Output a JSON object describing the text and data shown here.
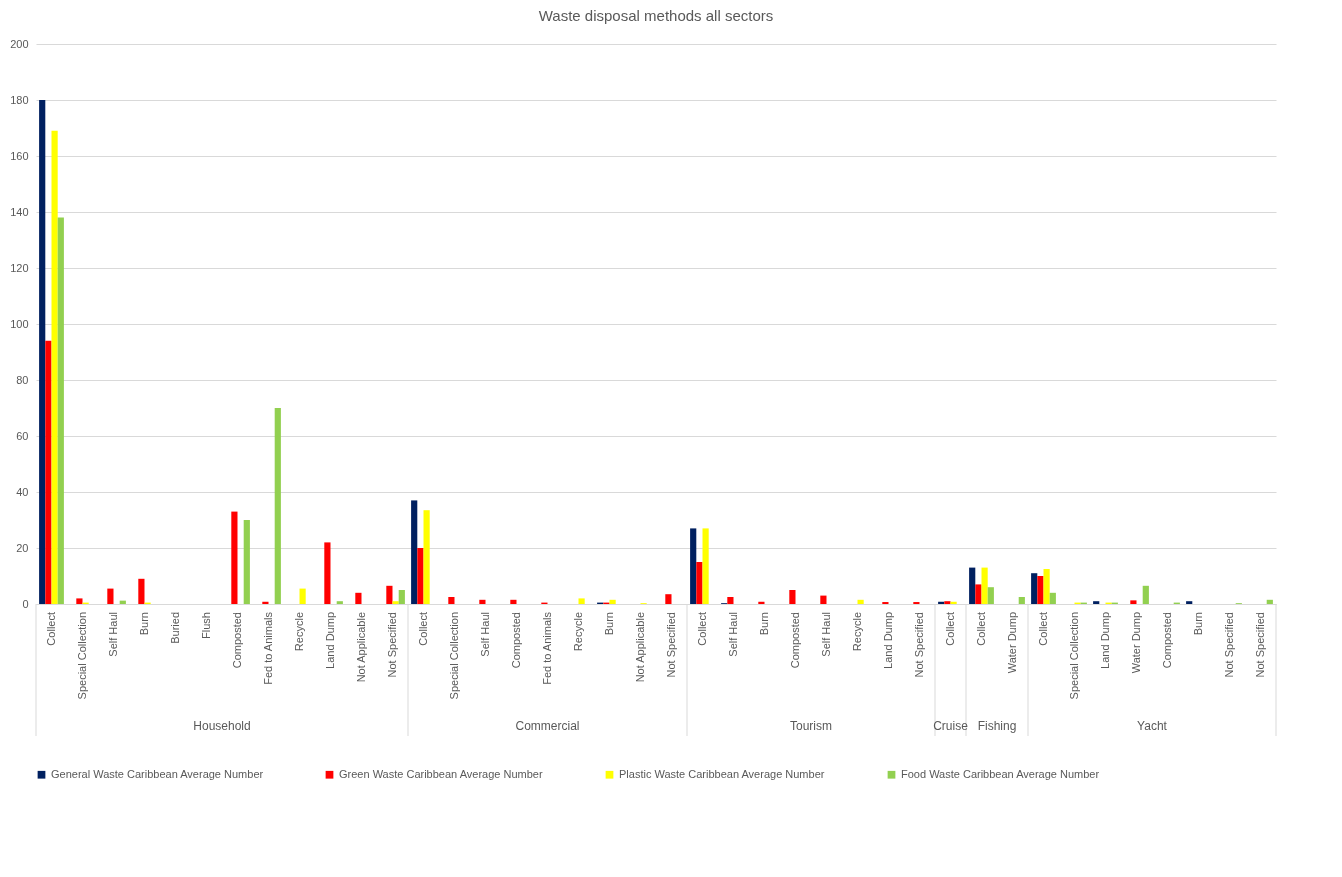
{
  "chart_data": {
    "type": "bar",
    "title": "Waste disposal methods all sectors",
    "categories": [
      "Collect",
      "Special Collection",
      "Self Haul",
      "Burn",
      "Buried",
      "Flush",
      "Composted",
      "Fed to Animals",
      "Recycle",
      "Land Dump",
      "Not Applicable",
      "Not Specified",
      "Collect",
      "Special Collection",
      "Self Haul",
      "Composted",
      "Fed to Animals",
      "Recycle",
      "Burn",
      "Not Applicable",
      "Not Specified",
      "Collect",
      "Self Haul",
      "Burn",
      "Composted",
      "Self Haul",
      "Recycle",
      "Land Dump",
      "Not Specified",
      "Collect",
      "Collect",
      "Water Dump",
      "Collect",
      "Special Collection",
      "Land Dump",
      "Water Dump",
      "Composted",
      "Burn",
      "Not Specified",
      "Not Specified"
    ],
    "series": [
      {
        "name": "General Waste Caribbean Average Number",
        "color": "#002060",
        "values": [
          180,
          null,
          null,
          null,
          null,
          null,
          null,
          null,
          null,
          null,
          null,
          null,
          37,
          null,
          null,
          null,
          null,
          null,
          0.5,
          null,
          null,
          27,
          0.3,
          null,
          null,
          null,
          null,
          null,
          null,
          0.8,
          13,
          null,
          11,
          null,
          1,
          null,
          null,
          1,
          null,
          null
        ]
      },
      {
        "name": "Green Waste Caribbean Average Number",
        "color": "#ff0000",
        "values": [
          94,
          2,
          5.5,
          9,
          null,
          null,
          33,
          0.8,
          null,
          22,
          4,
          6.5,
          20,
          2.5,
          1.5,
          1.5,
          0.5,
          null,
          0.5,
          null,
          3.5,
          15,
          2.5,
          0.8,
          5,
          3,
          null,
          0.7,
          0.7,
          1,
          7,
          null,
          10,
          null,
          null,
          1.3,
          null,
          null,
          null,
          null
        ]
      },
      {
        "name": "Plastic Waste Caribbean Average Number",
        "color": "#ffff00",
        "values": [
          169,
          0.5,
          null,
          0.5,
          null,
          null,
          null,
          null,
          5.5,
          null,
          null,
          1,
          33.5,
          null,
          null,
          null,
          null,
          2,
          1.5,
          0.3,
          null,
          27,
          null,
          null,
          null,
          null,
          1.5,
          null,
          null,
          0.8,
          13,
          null,
          12.5,
          0.5,
          0.5,
          null,
          null,
          null,
          null,
          null
        ]
      },
      {
        "name": "Food Waste Caribbean Average Number",
        "color": "#92d050",
        "values": [
          138,
          null,
          1.2,
          null,
          null,
          null,
          30,
          70,
          null,
          1,
          null,
          5,
          null,
          null,
          null,
          null,
          null,
          null,
          null,
          null,
          null,
          null,
          null,
          null,
          null,
          null,
          null,
          null,
          null,
          null,
          6,
          2.5,
          4,
          0.5,
          0.5,
          6.5,
          0.5,
          null,
          0.3,
          1.5
        ]
      }
    ],
    "annotations": [
      "Household",
      "Commercial",
      "Tourism",
      "Cruise",
      "Fishing",
      "Yacht"
    ],
    "ylim": [
      0,
      200
    ],
    "yticks": [
      0,
      20,
      40,
      60,
      80,
      100,
      120,
      140,
      160,
      180,
      200
    ],
    "grid": "y",
    "legend": "bottom"
  }
}
